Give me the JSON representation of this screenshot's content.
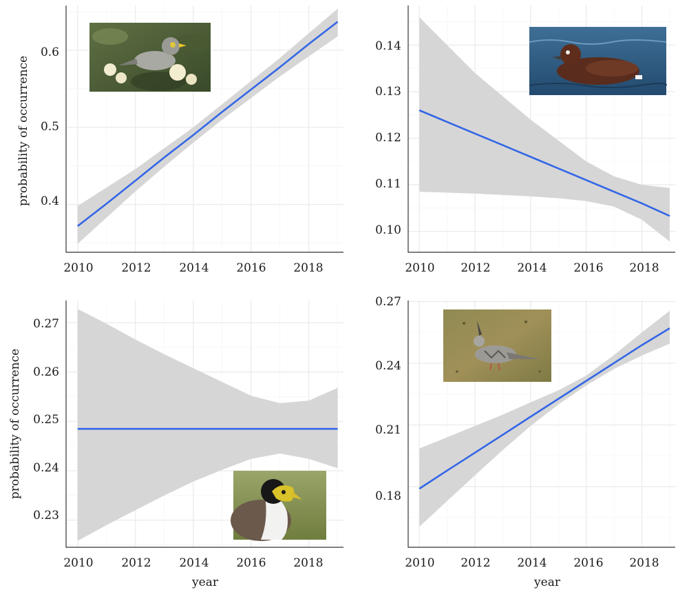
{
  "chart_data": [
    {
      "type": "line",
      "panel": "top-left",
      "xlabel": "",
      "ylabel": "probability of occurrence",
      "xlim": [
        2009.6,
        2019.2
      ],
      "ylim": [
        0.338,
        0.658
      ],
      "x_ticks": [
        "2010",
        "2012",
        "2014",
        "2016",
        "2018"
      ],
      "y_ticks": [
        "0.4",
        "0.5",
        "0.6"
      ],
      "grid": true,
      "series": [
        {
          "x": [
            2010,
            2011,
            2012,
            2013,
            2014,
            2015,
            2016,
            2017,
            2018,
            2019
          ],
          "values": [
            0.372,
            0.401,
            0.431,
            0.461,
            0.49,
            0.52,
            0.549,
            0.578,
            0.608,
            0.637
          ],
          "lower": [
            0.349,
            0.383,
            0.417,
            0.449,
            0.48,
            0.51,
            0.538,
            0.566,
            0.592,
            0.618
          ],
          "upper": [
            0.398,
            0.422,
            0.446,
            0.473,
            0.5,
            0.53,
            0.56,
            0.59,
            0.622,
            0.654
          ]
        }
      ],
      "inset": "noisy-miner-photo",
      "inset_position": "top-left"
    },
    {
      "type": "line",
      "panel": "top-right",
      "xlabel": "",
      "ylabel": "",
      "xlim": [
        2009.6,
        2019.2
      ],
      "ylim": [
        0.0955,
        0.1485
      ],
      "x_ticks": [
        "2010",
        "2012",
        "2014",
        "2016",
        "2018"
      ],
      "y_ticks": [
        "0.10",
        "0.11",
        "0.12",
        "0.13",
        "0.14"
      ],
      "grid": true,
      "series": [
        {
          "x": [
            2010,
            2011,
            2012,
            2013,
            2014,
            2015,
            2016,
            2017,
            2018,
            2019
          ],
          "values": [
            0.126,
            0.1235,
            0.121,
            0.1185,
            0.116,
            0.1135,
            0.111,
            0.1085,
            0.106,
            0.1033
          ],
          "lower": [
            0.1085,
            0.1083,
            0.1081,
            0.1078,
            0.1075,
            0.1071,
            0.1065,
            0.1053,
            0.1025,
            0.0978
          ],
          "upper": [
            0.146,
            0.14,
            0.134,
            0.129,
            0.124,
            0.1195,
            0.115,
            0.1118,
            0.11,
            0.1093
          ]
        }
      ],
      "inset": "hardhead-duck-photo",
      "inset_position": "top-right"
    },
    {
      "type": "line",
      "panel": "bottom-left",
      "xlabel": "year",
      "ylabel": "probability of occurrence",
      "xlim": [
        2009.6,
        2019.2
      ],
      "ylim": [
        0.2245,
        0.2745
      ],
      "x_ticks": [
        "2010",
        "2012",
        "2014",
        "2016",
        "2018"
      ],
      "y_ticks": [
        "0.23",
        "0.24",
        "0.25",
        "0.26",
        "0.27"
      ],
      "grid": true,
      "series": [
        {
          "x": [
            2010,
            2011,
            2012,
            2013,
            2014,
            2015,
            2016,
            2017,
            2018,
            2019
          ],
          "values": [
            0.2485,
            0.2485,
            0.2485,
            0.2485,
            0.2485,
            0.2485,
            0.2485,
            0.2485,
            0.2485,
            0.2485
          ],
          "lower": [
            0.2258,
            0.229,
            0.232,
            0.235,
            0.2378,
            0.2402,
            0.2424,
            0.2435,
            0.2424,
            0.2405
          ],
          "upper": [
            0.2728,
            0.2698,
            0.2666,
            0.2636,
            0.2608,
            0.258,
            0.2552,
            0.2537,
            0.2542,
            0.2568
          ]
        }
      ],
      "inset": "masked-lapwing-photo",
      "inset_position": "bottom-right"
    },
    {
      "type": "line",
      "panel": "bottom-right",
      "xlabel": "year",
      "ylabel": "",
      "xlim": [
        2009.6,
        2019.2
      ],
      "ylim": [
        0.1505,
        0.2705
      ],
      "x_ticks": [
        "2010",
        "2012",
        "2014",
        "2016",
        "2018"
      ],
      "y_ticks": [
        "0.18",
        "0.21",
        "0.24",
        "0.27"
      ],
      "grid": true,
      "series": [
        {
          "x": [
            2010,
            2011,
            2012,
            2013,
            2014,
            2015,
            2016,
            2017,
            2018,
            2019
          ],
          "values": [
            0.179,
            0.1878,
            0.1965,
            0.2052,
            0.214,
            0.2227,
            0.2314,
            0.2401,
            0.2488,
            0.257
          ],
          "lower": [
            0.1605,
            0.173,
            0.1855,
            0.1978,
            0.2095,
            0.22,
            0.2292,
            0.2372,
            0.2438,
            0.2495
          ],
          "upper": [
            0.1985,
            0.204,
            0.2095,
            0.215,
            0.221,
            0.2268,
            0.234,
            0.244,
            0.255,
            0.2655
          ]
        }
      ],
      "inset": "crested-pigeon-photo",
      "inset_position": "top-left"
    }
  ],
  "colors": {
    "line": "#3366e6",
    "ribbon": "#d6d6d6",
    "grid_major": "#ebebeb",
    "grid_minor": "#f5f5f5",
    "frame": "#333333"
  }
}
